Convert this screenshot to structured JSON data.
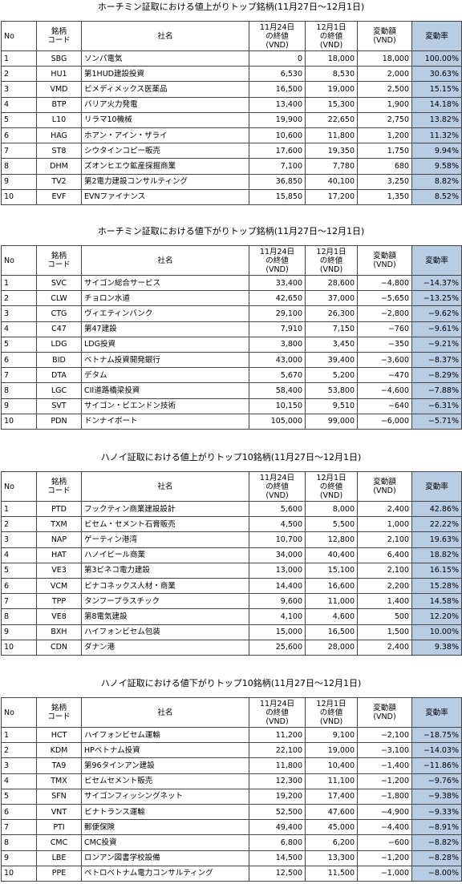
{
  "sections": [
    {
      "title": "ホーチミン証取における値上がりトップ銘柄(11月27日～12月1日)",
      "table": {
        "header": [
          "No",
          "銘柄\nコード",
          "社名",
          "11月24日\nの終値\n(VND)",
          "12月1日\nの終値\n(VND)",
          "変動額\n(VND)",
          "変動率"
        ],
        "rows": [
          [
            "1",
            "SBG",
            "ソンパ電気",
            "0",
            "18,000",
            "18,000",
            "100.00%"
          ],
          [
            "2",
            "HU1",
            "第1HUD建設投資",
            "6,530",
            "8,530",
            "2,000",
            "30.63%"
          ],
          [
            "3",
            "VMD",
            "ビメディメックス医薬品",
            "16,500",
            "19,000",
            "2,500",
            "15.15%"
          ],
          [
            "4",
            "BTP",
            "バリア火力発電",
            "13,400",
            "15,300",
            "1,900",
            "14.18%"
          ],
          [
            "5",
            "L10",
            "リラマ10機械",
            "19,900",
            "22,650",
            "2,750",
            "13.82%"
          ],
          [
            "6",
            "HAG",
            "ホアン・アイン・ザライ",
            "10,600",
            "11,800",
            "1,200",
            "11.32%"
          ],
          [
            "7",
            "ST8",
            "シウタインコピー販売",
            "17,600",
            "19,350",
            "1,750",
            "9.94%"
          ],
          [
            "8",
            "DHM",
            "ズオンヒエウ鉱産採掘商業",
            "7,100",
            "7,780",
            "680",
            "9.58%"
          ],
          [
            "9",
            "TV2",
            "第2電力建設コンサルティング",
            "36,850",
            "40,100",
            "3,250",
            "8.82%"
          ],
          [
            "10",
            "EVF",
            "EVNファイナンス",
            "15,850",
            "17,200",
            "1,350",
            "8.52%"
          ]
        ]
      }
    },
    {
      "title": "ホーチミン証取における値下がりトップ銘柄(11月27日～12月1日)",
      "table": {
        "header": [
          "No",
          "銘柄\nコード",
          "社名",
          "11月24日\nの終値\n(VND)",
          "12月1日\nの終値\n(VND)",
          "変動額\n(VND)",
          "変動率"
        ],
        "rows": [
          [
            "1",
            "SVC",
            "サイゴン総合サービス",
            "33,400",
            "28,600",
            "−4,800",
            "−14.37%"
          ],
          [
            "2",
            "CLW",
            "チョロン水道",
            "42,650",
            "37,000",
            "−5,650",
            "−13.25%"
          ],
          [
            "3",
            "CTG",
            "ヴィエティンバンク",
            "29,100",
            "26,300",
            "−2,800",
            "−9.62%"
          ],
          [
            "4",
            "C47",
            "第47建設",
            "7,910",
            "7,150",
            "−760",
            "−9.61%"
          ],
          [
            "5",
            "LDG",
            "LDG投資",
            "3,800",
            "3,450",
            "−350",
            "−9.21%"
          ],
          [
            "6",
            "BID",
            "ベトナム投資開発銀行",
            "43,000",
            "39,400",
            "−3,600",
            "−8.37%"
          ],
          [
            "7",
            "DTA",
            "デタム",
            "5,670",
            "5,200",
            "−470",
            "−8.29%"
          ],
          [
            "8",
            "LGC",
            "CII道路橋梁投資",
            "58,400",
            "53,800",
            "−4,600",
            "−7.88%"
          ],
          [
            "9",
            "SVT",
            "サイゴン・ビエンドン技術",
            "10,150",
            "9,510",
            "−640",
            "−6.31%"
          ],
          [
            "10",
            "PDN",
            "ドンナイポート",
            "105,000",
            "99,000",
            "−6,000",
            "−5.71%"
          ]
        ]
      }
    },
    {
      "title": "ハノイ証取における値上がりトップ10銘柄(11月27日～12月1日)",
      "table": {
        "header": [
          "No",
          "銘柄\nコード",
          "社名",
          "11月24日\nの終値\n(VND)",
          "12月1日\nの終値\n(VND)",
          "変動額\n(VND)",
          "変動率"
        ],
        "rows": [
          [
            "1",
            "PTD",
            "フックティン商業建設設計",
            "5,600",
            "8,000",
            "2,400",
            "42.86%"
          ],
          [
            "2",
            "TXM",
            "ビセム・セメント石膏販売",
            "4,500",
            "5,500",
            "1,000",
            "22.22%"
          ],
          [
            "3",
            "NAP",
            "ゲーティン港湾",
            "10,700",
            "12,800",
            "2,100",
            "19.63%"
          ],
          [
            "4",
            "HAT",
            "ハノイビール商業",
            "34,000",
            "40,400",
            "6,400",
            "18.82%"
          ],
          [
            "5",
            "VE3",
            "第3ビネコ電力建設",
            "13,000",
            "15,100",
            "2,100",
            "16.15%"
          ],
          [
            "6",
            "VCM",
            "ビナコネックス人材・商業",
            "14,400",
            "16,600",
            "2,200",
            "15.28%"
          ],
          [
            "7",
            "TPP",
            "タンフープラスチック",
            "9,600",
            "11,000",
            "1,400",
            "14.58%"
          ],
          [
            "8",
            "VE8",
            "第8電気建設",
            "4,100",
            "4,600",
            "500",
            "12.20%"
          ],
          [
            "9",
            "BXH",
            "ハイフォンビセム包装",
            "15,000",
            "16,500",
            "1,500",
            "10.00%"
          ],
          [
            "10",
            "CDN",
            "ダナン港",
            "25,600",
            "28,000",
            "2,400",
            "9.38%"
          ]
        ]
      }
    },
    {
      "title": "ハノイ証取における値下がりトップ10銘柄(11月27日～12月1日)",
      "table": {
        "header": [
          "No",
          "銘柄\nコード",
          "社名",
          "11月24日\nの終値\n(VND)",
          "12月1日\nの終値\n(VND)",
          "変動額\n(VND)",
          "変動率"
        ],
        "rows": [
          [
            "1",
            "HCT",
            "ハイフォンビセム運輸",
            "11,200",
            "9,100",
            "−2,100",
            "−18.75%"
          ],
          [
            "2",
            "KDM",
            "HPベトナム投資",
            "22,100",
            "19,000",
            "−3,100",
            "−14.03%"
          ],
          [
            "3",
            "TA9",
            "第96タインアン建設",
            "11,800",
            "10,400",
            "−1,400",
            "−11.86%"
          ],
          [
            "4",
            "TMX",
            "ビセムセメント販売",
            "12,300",
            "11,100",
            "−1,200",
            "−9.76%"
          ],
          [
            "5",
            "SFN",
            "サイゴンフィッシングネット",
            "19,200",
            "17,400",
            "−1,800",
            "−9.38%"
          ],
          [
            "6",
            "VNT",
            "ビナトランス運輸",
            "52,500",
            "47,600",
            "−4,900",
            "−9.33%"
          ],
          [
            "7",
            "PTI",
            "郵便保険",
            "49,400",
            "45,000",
            "−4,400",
            "−8.91%"
          ],
          [
            "8",
            "CMC",
            "CMC投資",
            "6,800",
            "6,200",
            "−600",
            "−8.82%"
          ],
          [
            "9",
            "LBE",
            "ロンアン図書学校設備",
            "14,500",
            "13,300",
            "−1,200",
            "−8.28%"
          ],
          [
            "10",
            "PPE",
            "ペトロベトナム電力コンサルティング",
            "12,500",
            "11,500",
            "−1,000",
            "−8.00%"
          ]
        ]
      }
    }
  ]
}
